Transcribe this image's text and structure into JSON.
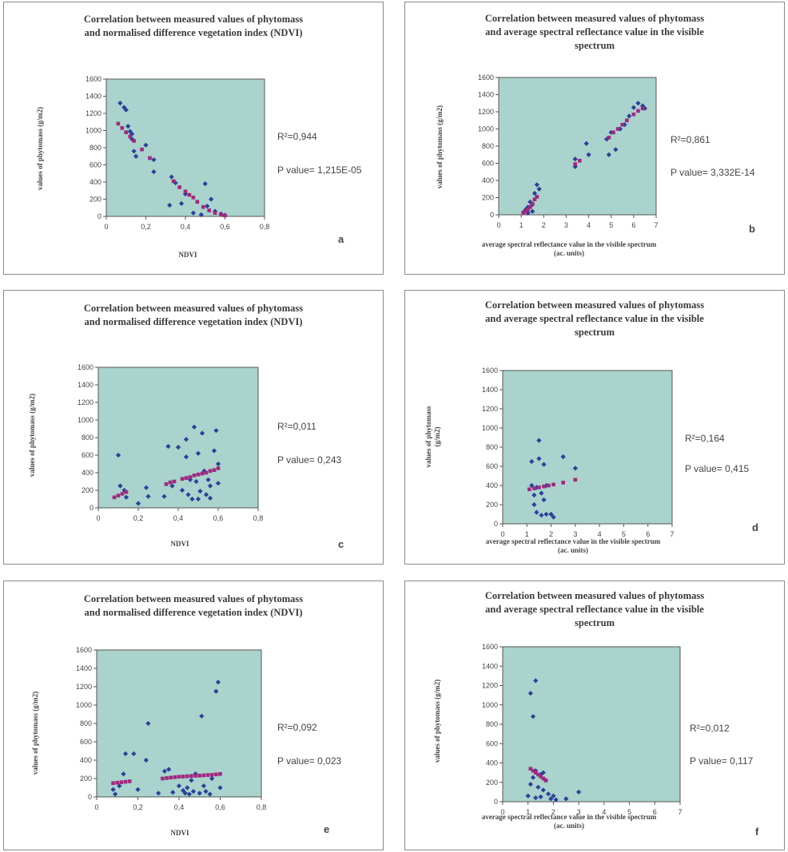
{
  "colors": {
    "plot_bg": "#a9d3cc",
    "points": "#2e3f9a",
    "trend": "#a2277e",
    "axis": "#555555"
  },
  "chart_data": [
    {
      "id": "a",
      "type": "scatter",
      "title": "Correlation between measured values of phytomass\nand normalised difference vegetation index (NDVI)",
      "xlabel": "NDVI",
      "ylabel": "values of phytomass (g/m2)",
      "xlim": [
        0,
        0.8
      ],
      "ylim": [
        0,
        1600
      ],
      "xticks": [
        "0",
        "0,2",
        "0,4",
        "0,6",
        "0,8"
      ],
      "yticks": [
        "0",
        "200",
        "400",
        "600",
        "800",
        "1000",
        "1200",
        "1400",
        "1600"
      ],
      "r2": "R²=0,944",
      "p": "P value= 1,215E-05",
      "letter": "a",
      "points": [
        [
          0.07,
          1320
        ],
        [
          0.09,
          1270
        ],
        [
          0.1,
          1240
        ],
        [
          0.11,
          1050
        ],
        [
          0.12,
          990
        ],
        [
          0.13,
          960
        ],
        [
          0.13,
          900
        ],
        [
          0.14,
          760
        ],
        [
          0.15,
          700
        ],
        [
          0.2,
          830
        ],
        [
          0.24,
          660
        ],
        [
          0.24,
          520
        ],
        [
          0.33,
          460
        ],
        [
          0.32,
          130
        ],
        [
          0.35,
          390
        ],
        [
          0.38,
          150
        ],
        [
          0.4,
          260
        ],
        [
          0.44,
          40
        ],
        [
          0.5,
          380
        ],
        [
          0.51,
          120
        ],
        [
          0.55,
          60
        ],
        [
          0.58,
          30
        ],
        [
          0.6,
          15
        ],
        [
          0.48,
          20
        ],
        [
          0.53,
          200
        ]
      ],
      "trend": [
        [
          0.06,
          1080
        ],
        [
          0.08,
          1030
        ],
        [
          0.1,
          980
        ],
        [
          0.12,
          930
        ],
        [
          0.14,
          880
        ],
        [
          0.18,
          780
        ],
        [
          0.22,
          680
        ],
        [
          0.34,
          410
        ],
        [
          0.37,
          340
        ],
        [
          0.4,
          290
        ],
        [
          0.42,
          250
        ],
        [
          0.44,
          220
        ],
        [
          0.46,
          170
        ],
        [
          0.49,
          110
        ],
        [
          0.52,
          70
        ],
        [
          0.55,
          40
        ],
        [
          0.58,
          20
        ],
        [
          0.6,
          10
        ]
      ]
    },
    {
      "id": "b",
      "type": "scatter",
      "title": "Correlation between measured values of phytomass\nand average spectral reflectance value in the visible\nspectrum",
      "xlabel": "average spectral reflectance value in the visible spectrum\n(ac. units)",
      "ylabel": "values of phytomass (g/m2)",
      "xlim": [
        0,
        7
      ],
      "ylim": [
        0,
        1600
      ],
      "xticks": [
        "0",
        "1",
        "2",
        "3",
        "4",
        "5",
        "6",
        "7"
      ],
      "yticks": [
        "0",
        "200",
        "400",
        "600",
        "800",
        "1000",
        "1200",
        "1400",
        "1600"
      ],
      "r2": "R²=0,861",
      "p": "P value= 3,332E-14",
      "letter": "b",
      "points": [
        [
          1.1,
          30
        ],
        [
          1.2,
          60
        ],
        [
          1.3,
          90
        ],
        [
          1.3,
          20
        ],
        [
          1.4,
          150
        ],
        [
          1.5,
          120
        ],
        [
          1.6,
          250
        ],
        [
          1.7,
          350
        ],
        [
          1.8,
          300
        ],
        [
          1.5,
          40
        ],
        [
          3.4,
          650
        ],
        [
          3.4,
          560
        ],
        [
          3.9,
          830
        ],
        [
          4.0,
          700
        ],
        [
          4.9,
          700
        ],
        [
          4.8,
          880
        ],
        [
          5.0,
          960
        ],
        [
          5.2,
          760
        ],
        [
          5.4,
          1000
        ],
        [
          5.6,
          1050
        ],
        [
          6.0,
          1250
        ],
        [
          6.2,
          1300
        ],
        [
          6.4,
          1270
        ],
        [
          6.5,
          1240
        ],
        [
          5.8,
          1150
        ]
      ],
      "trend": [
        [
          1.1,
          20
        ],
        [
          1.2,
          40
        ],
        [
          1.3,
          60
        ],
        [
          1.4,
          90
        ],
        [
          1.5,
          130
        ],
        [
          1.6,
          180
        ],
        [
          1.7,
          210
        ],
        [
          3.4,
          590
        ],
        [
          3.6,
          630
        ],
        [
          4.9,
          900
        ],
        [
          5.1,
          960
        ],
        [
          5.3,
          1000
        ],
        [
          5.5,
          1050
        ],
        [
          5.7,
          1100
        ],
        [
          6.0,
          1170
        ],
        [
          6.2,
          1210
        ],
        [
          6.4,
          1240
        ]
      ]
    },
    {
      "id": "c",
      "type": "scatter",
      "title": "Correlation between measured values of phytomass\nand normalised difference vegetation index (NDVI)",
      "xlabel": "NDVI",
      "ylabel": "values of phytomass (g/m2)",
      "xlim": [
        0,
        0.8
      ],
      "ylim": [
        0,
        1600
      ],
      "xticks": [
        "0",
        "0,2",
        "0,4",
        "0,6",
        "0,8"
      ],
      "yticks": [
        "0",
        "200",
        "400",
        "600",
        "800",
        "1000",
        "1200",
        "1400",
        "1600"
      ],
      "r2": "R²=0,011",
      "p": "P value= 0,243",
      "letter": "c",
      "points": [
        [
          0.1,
          600
        ],
        [
          0.11,
          250
        ],
        [
          0.13,
          200
        ],
        [
          0.14,
          120
        ],
        [
          0.2,
          50
        ],
        [
          0.24,
          230
        ],
        [
          0.25,
          130
        ],
        [
          0.33,
          130
        ],
        [
          0.35,
          700
        ],
        [
          0.37,
          250
        ],
        [
          0.4,
          690
        ],
        [
          0.42,
          200
        ],
        [
          0.44,
          580
        ],
        [
          0.45,
          150
        ],
        [
          0.46,
          320
        ],
        [
          0.47,
          100
        ],
        [
          0.48,
          920
        ],
        [
          0.49,
          300
        ],
        [
          0.5,
          620
        ],
        [
          0.51,
          190
        ],
        [
          0.52,
          850
        ],
        [
          0.53,
          420
        ],
        [
          0.54,
          150
        ],
        [
          0.55,
          320
        ],
        [
          0.56,
          110
        ],
        [
          0.58,
          650
        ],
        [
          0.59,
          880
        ],
        [
          0.6,
          500
        ],
        [
          0.6,
          280
        ],
        [
          0.44,
          780
        ],
        [
          0.5,
          100
        ],
        [
          0.56,
          250
        ]
      ],
      "trend": [
        [
          0.08,
          120
        ],
        [
          0.1,
          140
        ],
        [
          0.12,
          160
        ],
        [
          0.14,
          180
        ],
        [
          0.34,
          270
        ],
        [
          0.36,
          290
        ],
        [
          0.38,
          300
        ],
        [
          0.42,
          330
        ],
        [
          0.44,
          340
        ],
        [
          0.46,
          350
        ],
        [
          0.48,
          370
        ],
        [
          0.5,
          380
        ],
        [
          0.52,
          390
        ],
        [
          0.54,
          400
        ],
        [
          0.56,
          420
        ],
        [
          0.58,
          430
        ],
        [
          0.6,
          450
        ]
      ]
    },
    {
      "id": "d",
      "type": "scatter",
      "title": "Correlation between measured values of phytomass\nand average spectral reflectance value in the visible\nspectrum",
      "xlabel": "average spectral reflectance value in the visible spectrum\n(ac. units)",
      "ylabel": "values of phytomass\n(g/m2)",
      "xlim": [
        0,
        7
      ],
      "ylim": [
        0,
        1600
      ],
      "xticks": [
        "0",
        "1",
        "2",
        "3",
        "4",
        "5",
        "6",
        "7"
      ],
      "yticks": [
        "0",
        "200",
        "400",
        "600",
        "800",
        "1000",
        "1200",
        "1400",
        "1600"
      ],
      "r2": "R²=0,164",
      "p": "P value= 0,415",
      "letter": "d",
      "points": [
        [
          1.2,
          650
        ],
        [
          1.3,
          300
        ],
        [
          1.3,
          200
        ],
        [
          1.4,
          380
        ],
        [
          1.4,
          120
        ],
        [
          1.5,
          870
        ],
        [
          1.5,
          680
        ],
        [
          1.6,
          320
        ],
        [
          1.6,
          90
        ],
        [
          1.7,
          620
        ],
        [
          1.8,
          400
        ],
        [
          1.8,
          100
        ],
        [
          2.0,
          100
        ],
        [
          2.1,
          70
        ],
        [
          2.5,
          700
        ],
        [
          3.0,
          580
        ],
        [
          1.2,
          400
        ],
        [
          1.7,
          250
        ]
      ],
      "trend": [
        [
          1.1,
          360
        ],
        [
          1.3,
          370
        ],
        [
          1.5,
          380
        ],
        [
          1.7,
          390
        ],
        [
          1.9,
          400
        ],
        [
          2.1,
          410
        ],
        [
          2.5,
          430
        ],
        [
          3.0,
          460
        ]
      ]
    },
    {
      "id": "e",
      "type": "scatter",
      "title": "Correlation between measured values of phytomass\nand normalised difference vegetation index (NDVI)",
      "xlabel": "NDVI",
      "ylabel": "values of phytomass (g/m2)",
      "xlim": [
        0,
        0.8
      ],
      "ylim": [
        0,
        1600
      ],
      "xticks": [
        "0",
        "0,2",
        "0,4",
        "0,6",
        "0,8"
      ],
      "yticks": [
        "0",
        "200",
        "400",
        "600",
        "800",
        "1000",
        "1200",
        "1400",
        "1600"
      ],
      "r2": "R²=0,092",
      "p": "P value= 0,023",
      "letter": "e",
      "points": [
        [
          0.08,
          80
        ],
        [
          0.09,
          30
        ],
        [
          0.11,
          120
        ],
        [
          0.13,
          250
        ],
        [
          0.14,
          470
        ],
        [
          0.18,
          470
        ],
        [
          0.2,
          80
        ],
        [
          0.24,
          400
        ],
        [
          0.25,
          800
        ],
        [
          0.3,
          40
        ],
        [
          0.33,
          280
        ],
        [
          0.35,
          300
        ],
        [
          0.37,
          50
        ],
        [
          0.4,
          120
        ],
        [
          0.42,
          70
        ],
        [
          0.44,
          100
        ],
        [
          0.45,
          30
        ],
        [
          0.46,
          180
        ],
        [
          0.47,
          60
        ],
        [
          0.48,
          250
        ],
        [
          0.5,
          40
        ],
        [
          0.51,
          880
        ],
        [
          0.52,
          120
        ],
        [
          0.53,
          60
        ],
        [
          0.55,
          30
        ],
        [
          0.58,
          1150
        ],
        [
          0.59,
          1250
        ],
        [
          0.6,
          100
        ],
        [
          0.56,
          200
        ],
        [
          0.43,
          40
        ]
      ],
      "trend": [
        [
          0.08,
          150
        ],
        [
          0.1,
          155
        ],
        [
          0.12,
          160
        ],
        [
          0.14,
          165
        ],
        [
          0.16,
          170
        ],
        [
          0.32,
          200
        ],
        [
          0.34,
          205
        ],
        [
          0.36,
          210
        ],
        [
          0.38,
          215
        ],
        [
          0.4,
          220
        ],
        [
          0.42,
          222
        ],
        [
          0.44,
          225
        ],
        [
          0.46,
          228
        ],
        [
          0.48,
          230
        ],
        [
          0.5,
          232
        ],
        [
          0.52,
          235
        ],
        [
          0.54,
          238
        ],
        [
          0.56,
          240
        ],
        [
          0.58,
          245
        ],
        [
          0.6,
          250
        ]
      ]
    },
    {
      "id": "f",
      "type": "scatter",
      "title": "Correlation between measured values of phytomass\nand average spectral reflectance value in the visible\nspectrum",
      "xlabel": "average spectral reflectance value in the visible spectrum\n(ac. units)",
      "ylabel": "values of phytomass (g/m2)",
      "xlim": [
        0,
        7
      ],
      "ylim": [
        0,
        1600
      ],
      "xticks": [
        "0",
        "1",
        "2",
        "3",
        "4",
        "5",
        "6",
        "7"
      ],
      "yticks": [
        "0",
        "200",
        "400",
        "600",
        "800",
        "1000",
        "1200",
        "1400",
        "1600"
      ],
      "r2": "R²=0,012",
      "p": "P value= 0,117",
      "letter": "f",
      "points": [
        [
          1.1,
          1120
        ],
        [
          1.2,
          880
        ],
        [
          1.3,
          1250
        ],
        [
          1.0,
          60
        ],
        [
          1.1,
          180
        ],
        [
          1.2,
          250
        ],
        [
          1.3,
          320
        ],
        [
          1.4,
          150
        ],
        [
          1.5,
          280
        ],
        [
          1.5,
          50
        ],
        [
          1.6,
          120
        ],
        [
          1.7,
          220
        ],
        [
          1.8,
          80
        ],
        [
          1.9,
          30
        ],
        [
          2.0,
          60
        ],
        [
          2.1,
          20
        ],
        [
          2.5,
          30
        ],
        [
          3.0,
          100
        ],
        [
          1.3,
          40
        ],
        [
          1.6,
          300
        ]
      ],
      "trend": [
        [
          1.1,
          340
        ],
        [
          1.2,
          320
        ],
        [
          1.3,
          300
        ],
        [
          1.4,
          280
        ],
        [
          1.5,
          260
        ],
        [
          1.6,
          240
        ],
        [
          1.7,
          220
        ]
      ]
    }
  ]
}
